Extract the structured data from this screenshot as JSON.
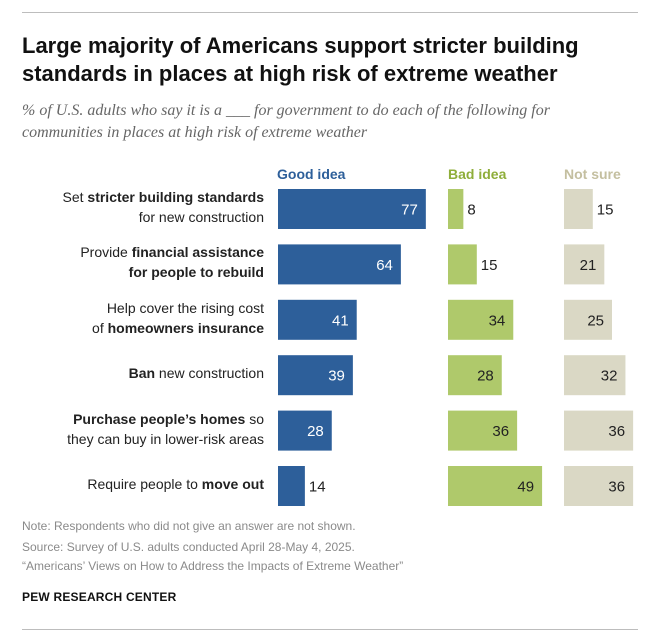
{
  "title": "Large majority of Americans support stricter building standards in places at high risk of extreme weather",
  "subtitle": "% of U.S. adults who say it is a ___ for government to do each of the following for communities in places at high risk of extreme weather",
  "colors": {
    "good": "#2d5f9a",
    "bad": "#afc96b",
    "unsure": "#dad8c5",
    "good_head": "#2d5f9a",
    "bad_head": "#8fae3a",
    "unsure_head": "#c4bfa0"
  },
  "rows": [
    {
      "l1_pre": "Set ",
      "l1_bold": "stricter building standards",
      "l1_post": "",
      "l2_pre": "for new construction",
      "l2_bold": "",
      "l2_post": ""
    },
    {
      "l1_pre": "Provide ",
      "l1_bold": "financial assistance",
      "l1_post": "",
      "l2_pre": "",
      "l2_bold": "for people to rebuild",
      "l2_post": ""
    },
    {
      "l1_pre": "Help cover the rising cost",
      "l1_bold": "",
      "l1_post": "",
      "l2_pre": "of ",
      "l2_bold": "homeowners insurance",
      "l2_post": ""
    },
    {
      "l1_pre": "",
      "l1_bold": "Ban",
      "l1_post": " new construction",
      "l2_pre": "",
      "l2_bold": "",
      "l2_post": ""
    },
    {
      "l1_pre": "",
      "l1_bold": "Purchase people’s homes",
      "l1_post": " so",
      "l2_pre": "they can buy in lower-risk areas",
      "l2_bold": "",
      "l2_post": ""
    },
    {
      "l1_pre": "Require people to ",
      "l1_bold": "move out",
      "l1_post": "",
      "l2_pre": "",
      "l2_bold": "",
      "l2_post": ""
    }
  ],
  "notes": {
    "note": "Note: Respondents who did not give an answer are not shown.",
    "source": "Source: Survey of U.S. adults conducted April 28-May 4, 2025.",
    "report": "“Americans’ Views on How to Address the Impacts of Extreme Weather”",
    "brand": "PEW RESEARCH CENTER"
  },
  "chart_data": {
    "type": "bar",
    "orientation": "horizontal",
    "categories": [
      "Set stricter building standards for new construction",
      "Provide financial assistance for people to rebuild",
      "Help cover the rising cost of homeowners insurance",
      "Ban new construction",
      "Purchase people’s homes so they can buy in lower-risk areas",
      "Require people to move out"
    ],
    "series": [
      {
        "name": "Good idea",
        "values": [
          77,
          64,
          41,
          39,
          28,
          14
        ]
      },
      {
        "name": "Bad idea",
        "values": [
          8,
          15,
          34,
          28,
          36,
          49
        ]
      },
      {
        "name": "Not sure",
        "values": [
          15,
          21,
          25,
          32,
          36,
          36
        ]
      }
    ],
    "legend_placement": "top",
    "grid": false
  }
}
